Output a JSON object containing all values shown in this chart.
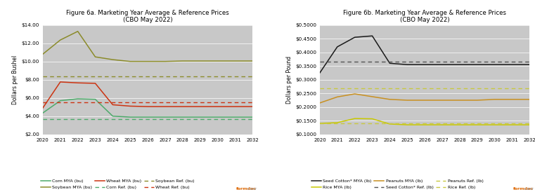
{
  "years": [
    2020,
    2021,
    2022,
    2023,
    2024,
    2025,
    2026,
    2027,
    2028,
    2029,
    2030,
    2031,
    2032
  ],
  "fig6a": {
    "title": "Figure 6a. Marketing Year Average & Reference Prices\n(CBO May 2022)",
    "ylabel": "Dollars per Bushel",
    "ylim": [
      2.0,
      14.0
    ],
    "yticks": [
      2.0,
      4.0,
      6.0,
      8.0,
      10.0,
      12.0,
      14.0
    ],
    "corn_mya": [
      4.35,
      5.7,
      5.9,
      5.85,
      4.0,
      3.9,
      3.9,
      3.9,
      3.9,
      3.9,
      3.9,
      3.9,
      3.9
    ],
    "soybean_mya": [
      10.8,
      12.35,
      13.3,
      10.5,
      10.2,
      10.0,
      10.0,
      10.0,
      10.05,
      10.05,
      10.05,
      10.05,
      10.05
    ],
    "wheat_mya": [
      4.9,
      7.75,
      7.65,
      7.6,
      5.25,
      5.1,
      5.05,
      5.05,
      5.05,
      5.05,
      5.05,
      5.05,
      5.05
    ],
    "corn_ref": 3.7,
    "soybean_ref": 8.4,
    "wheat_ref": 5.5,
    "corn_color": "#4daa6a",
    "soybean_color": "#8b8b2a",
    "wheat_color": "#cc3311",
    "corn_ref_color": "#4daa6a",
    "soybean_ref_color": "#8b8b2a",
    "wheat_ref_color": "#cc3311",
    "legend_row1": [
      "Corn MYA (bu)",
      "Soybean MYA (bu)",
      "Wheat MYA (bu)"
    ],
    "legend_row2": [
      "Corn Ref. (bu)",
      "Soybean Ref. (bu)",
      "Wheat Ref. (bu)"
    ]
  },
  "fig6b": {
    "title": "Figure 6b. Marketing Year Average & Reference Prices\n(CBO May 2022)",
    "ylabel": "Dollars per Pound",
    "ylim": [
      0.1,
      0.5
    ],
    "yticks": [
      0.1,
      0.15,
      0.2,
      0.25,
      0.3,
      0.35,
      0.4,
      0.45,
      0.5
    ],
    "seed_cotton_mya": [
      0.325,
      0.42,
      0.455,
      0.46,
      0.36,
      0.355,
      0.355,
      0.355,
      0.355,
      0.355,
      0.355,
      0.355,
      0.355
    ],
    "rice_mya": [
      0.14,
      0.143,
      0.158,
      0.157,
      0.138,
      0.135,
      0.135,
      0.135,
      0.135,
      0.135,
      0.135,
      0.135,
      0.135
    ],
    "peanuts_mya": [
      0.215,
      0.237,
      0.248,
      0.238,
      0.228,
      0.225,
      0.225,
      0.225,
      0.225,
      0.225,
      0.228,
      0.228,
      0.228
    ],
    "seed_cotton_ref": 0.367,
    "peanuts_ref": 0.2675,
    "rice_ref": 0.14,
    "seed_cotton_color": "#1a1a1a",
    "rice_color": "#c8c800",
    "peanuts_color": "#c89020",
    "seed_cotton_ref_color": "#555555",
    "peanuts_ref_color": "#c8c840",
    "rice_ref_color": "#c8c840",
    "legend_row1": [
      "Seed Cotton* MYA (lb)",
      "Rice MYA (lb)",
      "Peanuts MYA (lb)"
    ],
    "legend_row2": [
      "Seed Cotton* Ref. (lb)",
      "Peanuts Ref. (lb)",
      "Rice Ref. (lb)"
    ]
  },
  "fig_bg_color": "#ffffff",
  "plot_bg_color": "#c8c8c8",
  "grid_color": "#ffffff",
  "formdoc_orange": "#dd6600",
  "formdoc_gray": "#888888"
}
